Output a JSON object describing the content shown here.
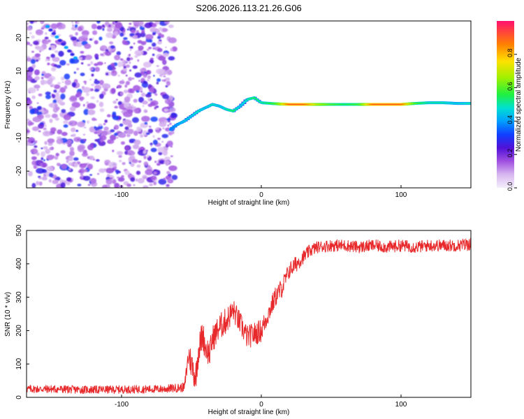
{
  "figure_title": "S206.2026.113.21.26.G06",
  "chart_data": [
    {
      "type": "heatmap",
      "title": "S206.2026.113.21.26.G06",
      "xlabel": "Height of straight line (km)",
      "ylabel": "Frequency (Hz)",
      "xlim": [
        -168,
        150
      ],
      "ylim": [
        -25,
        25
      ],
      "xticks": [
        -100,
        0,
        100
      ],
      "yticks": [
        -20,
        -10,
        0,
        10,
        20
      ],
      "colorbar": {
        "label": "Normalized spectral amplitude",
        "range": [
          0,
          1
        ],
        "ticks": [
          0.0,
          0.2,
          0.4,
          0.6,
          0.8
        ],
        "tick_labels": [
          "0.0",
          "0.2",
          "0.4",
          "0.6",
          "0.8"
        ],
        "colormap": "rainbow (light violet to red)"
      },
      "noise_region_km": [
        -168,
        -62
      ],
      "ridge": {
        "description": "dominant frequency track vs height",
        "x": [
          -65,
          -60,
          -55,
          -50,
          -45,
          -40,
          -35,
          -30,
          -25,
          -20,
          -15,
          -10,
          -5,
          0,
          10,
          20,
          30,
          40,
          50,
          60,
          70,
          80,
          90,
          100,
          110,
          120,
          130,
          140,
          150
        ],
        "y": [
          -7.5,
          -6,
          -5,
          -3.5,
          -2,
          -1,
          0,
          -0.5,
          -1.5,
          -2,
          -0.5,
          1.5,
          2,
          0.5,
          0.2,
          0,
          0,
          0,
          0,
          0,
          0,
          0,
          0,
          0,
          0.3,
          0.5,
          0.5,
          0.3,
          0.3
        ],
        "amplitude": [
          0.35,
          0.4,
          0.45,
          0.45,
          0.5,
          0.45,
          0.5,
          0.45,
          0.5,
          0.55,
          0.45,
          0.5,
          0.55,
          0.5,
          0.6,
          0.9,
          0.9,
          0.7,
          0.6,
          0.55,
          0.6,
          0.9,
          0.9,
          0.9,
          0.6,
          0.5,
          0.5,
          0.45,
          0.5
        ]
      }
    },
    {
      "type": "line",
      "xlabel": "Height of straight line (km)",
      "ylabel": "SNR (10 * v/v)",
      "xlim": [
        -168,
        150
      ],
      "ylim": [
        0,
        500
      ],
      "xticks": [
        -100,
        0,
        100
      ],
      "yticks": [
        0,
        100,
        200,
        300,
        400,
        500
      ],
      "series": [
        {
          "name": "SNR",
          "color": "#e8292b",
          "x": [
            -168,
            -150,
            -130,
            -110,
            -90,
            -70,
            -55,
            -52,
            -50,
            -47,
            -45,
            -42,
            -40,
            -37,
            -35,
            -30,
            -25,
            -20,
            -15,
            -10,
            -5,
            0,
            5,
            10,
            15,
            20,
            25,
            30,
            35,
            40,
            50,
            60,
            70,
            80,
            90,
            100,
            110,
            120,
            130,
            140,
            150
          ],
          "y": [
            25,
            25,
            23,
            23,
            24,
            25,
            30,
            130,
            100,
            60,
            140,
            190,
            150,
            130,
            175,
            210,
            230,
            260,
            220,
            180,
            190,
            200,
            250,
            300,
            330,
            380,
            400,
            420,
            440,
            450,
            455,
            455,
            450,
            455,
            450,
            455,
            450,
            455,
            455,
            455,
            460
          ],
          "noise_amplitude": [
            12,
            12,
            12,
            12,
            12,
            12,
            14,
            40,
            45,
            45,
            45,
            45,
            40,
            40,
            40,
            40,
            40,
            35,
            35,
            35,
            35,
            35,
            30,
            30,
            30,
            25,
            25,
            20,
            20,
            18,
            18,
            18,
            18,
            18,
            18,
            18,
            18,
            18,
            18,
            18,
            20
          ]
        }
      ]
    }
  ]
}
